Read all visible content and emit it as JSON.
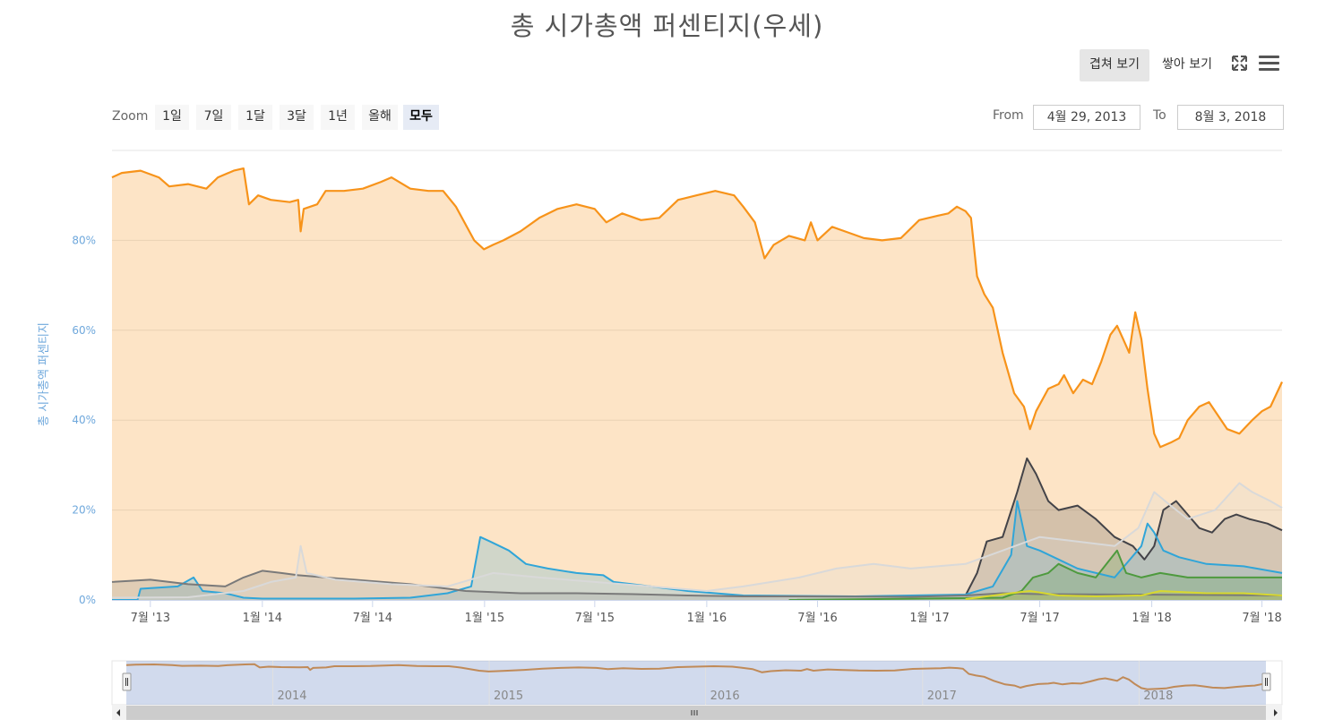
{
  "title": "총 시가총액 퍼센티지(우세)",
  "toolbar": {
    "overlap_label": "겹쳐 보기",
    "stack_label": "쌓아 보기",
    "fullscreen_icon": "fullscreen-icon",
    "menu_icon": "hamburger-menu-icon"
  },
  "range_selector": {
    "zoom_label": "Zoom",
    "buttons": [
      "1일",
      "7일",
      "1달",
      "3달",
      "1년",
      "올해",
      "모두"
    ],
    "active": "모두",
    "from_label": "From",
    "from_value": "4월 29, 2013",
    "to_label": "To",
    "to_value": "8월 3, 2018"
  },
  "colors": {
    "bitcoin": "#f7931a",
    "bitcoin_fill": "#fde3c5",
    "dark": "#434348",
    "blue": "#30a5d8",
    "grey": "#7a7a7a",
    "light": "#d9d9d9",
    "green": "#4e9a3e",
    "yellow": "#d8d82e",
    "axis_label": "#6fa8dc"
  },
  "chart_data": {
    "type": "area",
    "title": "총 시가총액 퍼센티지(우세)",
    "ylabel": "총 시가총액 퍼센티지",
    "ylim": [
      0,
      100
    ],
    "yticks": [
      "0%",
      "20%",
      "40%",
      "60%",
      "80%"
    ],
    "xlim": [
      "2013-04-29",
      "2018-08-03"
    ],
    "xticks": [
      "7월 '13",
      "1월 '14",
      "7월 '14",
      "1월 '15",
      "7월 '15",
      "1월 '16",
      "7월 '16",
      "1월 '17",
      "7월 '17",
      "1월 '18",
      "7월 '18"
    ],
    "navigator_ticks": [
      "2014",
      "2015",
      "2016",
      "2017",
      "2018"
    ],
    "grid": true,
    "series": [
      {
        "color": "#f7931a",
        "points": [
          [
            "2013-04-29",
            94
          ],
          [
            "2013-05-15",
            95
          ],
          [
            "2013-06-15",
            95.5
          ],
          [
            "2013-07-15",
            94
          ],
          [
            "2013-08-01",
            92
          ],
          [
            "2013-09-01",
            92.5
          ],
          [
            "2013-10-01",
            91.5
          ],
          [
            "2013-10-20",
            94
          ],
          [
            "2013-11-15",
            95.5
          ],
          [
            "2013-12-01",
            96
          ],
          [
            "2013-12-10",
            88
          ],
          [
            "2013-12-25",
            90
          ],
          [
            "2014-01-15",
            89
          ],
          [
            "2014-02-15",
            88.5
          ],
          [
            "2014-03-01",
            89
          ],
          [
            "2014-03-05",
            82
          ],
          [
            "2014-03-10",
            87
          ],
          [
            "2014-04-01",
            88
          ],
          [
            "2014-04-15",
            91
          ],
          [
            "2014-05-15",
            91
          ],
          [
            "2014-06-15",
            91.5
          ],
          [
            "2014-07-15",
            93
          ],
          [
            "2014-08-01",
            94
          ],
          [
            "2014-09-01",
            91.5
          ],
          [
            "2014-10-01",
            91
          ],
          [
            "2014-10-25",
            91
          ],
          [
            "2014-11-15",
            87.5
          ],
          [
            "2014-12-15",
            80
          ],
          [
            "2014-12-31",
            78
          ],
          [
            "2015-01-15",
            79
          ],
          [
            "2015-02-01",
            80
          ],
          [
            "2015-03-01",
            82
          ],
          [
            "2015-04-01",
            85
          ],
          [
            "2015-05-01",
            87
          ],
          [
            "2015-06-01",
            88
          ],
          [
            "2015-07-01",
            87
          ],
          [
            "2015-07-20",
            84
          ],
          [
            "2015-08-15",
            86
          ],
          [
            "2015-09-15",
            84.5
          ],
          [
            "2015-10-15",
            85
          ],
          [
            "2015-11-15",
            89
          ],
          [
            "2015-12-15",
            90
          ],
          [
            "2016-01-15",
            91
          ],
          [
            "2016-02-15",
            90
          ],
          [
            "2016-03-01",
            87.5
          ],
          [
            "2016-03-20",
            84
          ],
          [
            "2016-04-05",
            76
          ],
          [
            "2016-04-20",
            79
          ],
          [
            "2016-05-15",
            81
          ],
          [
            "2016-06-10",
            80
          ],
          [
            "2016-06-20",
            84
          ],
          [
            "2016-07-01",
            80
          ],
          [
            "2016-07-25",
            83
          ],
          [
            "2016-08-15",
            82
          ],
          [
            "2016-09-15",
            80.5
          ],
          [
            "2016-10-15",
            80
          ],
          [
            "2016-11-15",
            80.5
          ],
          [
            "2016-12-15",
            84.5
          ],
          [
            "2017-01-15",
            85.5
          ],
          [
            "2017-02-01",
            86
          ],
          [
            "2017-02-15",
            87.5
          ],
          [
            "2017-03-01",
            86.5
          ],
          [
            "2017-03-10",
            85
          ],
          [
            "2017-03-20",
            72
          ],
          [
            "2017-04-01",
            68
          ],
          [
            "2017-04-15",
            65
          ],
          [
            "2017-05-01",
            55
          ],
          [
            "2017-05-20",
            46
          ],
          [
            "2017-06-05",
            43
          ],
          [
            "2017-06-15",
            38
          ],
          [
            "2017-06-25",
            42
          ],
          [
            "2017-07-15",
            47
          ],
          [
            "2017-08-01",
            48
          ],
          [
            "2017-08-10",
            50
          ],
          [
            "2017-08-25",
            46
          ],
          [
            "2017-09-10",
            49
          ],
          [
            "2017-09-25",
            48
          ],
          [
            "2017-10-10",
            53
          ],
          [
            "2017-10-25",
            59
          ],
          [
            "2017-11-05",
            61
          ],
          [
            "2017-11-15",
            58
          ],
          [
            "2017-11-25",
            55
          ],
          [
            "2017-12-05",
            64
          ],
          [
            "2017-12-15",
            58
          ],
          [
            "2017-12-25",
            47
          ],
          [
            "2018-01-05",
            37
          ],
          [
            "2018-01-15",
            34
          ],
          [
            "2018-02-01",
            35
          ],
          [
            "2018-02-15",
            36
          ],
          [
            "2018-03-01",
            40
          ],
          [
            "2018-03-20",
            43
          ],
          [
            "2018-04-05",
            44
          ],
          [
            "2018-04-20",
            41
          ],
          [
            "2018-05-05",
            38
          ],
          [
            "2018-05-25",
            37
          ],
          [
            "2018-06-15",
            40
          ],
          [
            "2018-07-01",
            42
          ],
          [
            "2018-07-15",
            43
          ],
          [
            "2018-08-03",
            48.5
          ]
        ]
      },
      {
        "color": "#434348",
        "points": [
          [
            "2017-03-01",
            1
          ],
          [
            "2017-03-20",
            6
          ],
          [
            "2017-04-05",
            13
          ],
          [
            "2017-05-01",
            14
          ],
          [
            "2017-05-25",
            24
          ],
          [
            "2017-06-10",
            31.5
          ],
          [
            "2017-06-25",
            28
          ],
          [
            "2017-07-15",
            22
          ],
          [
            "2017-08-01",
            20
          ],
          [
            "2017-09-01",
            21
          ],
          [
            "2017-10-01",
            18
          ],
          [
            "2017-11-01",
            14
          ],
          [
            "2017-12-01",
            12
          ],
          [
            "2017-12-20",
            9
          ],
          [
            "2018-01-05",
            12
          ],
          [
            "2018-01-20",
            20
          ],
          [
            "2018-02-10",
            22
          ],
          [
            "2018-03-01",
            19
          ],
          [
            "2018-03-20",
            16
          ],
          [
            "2018-04-10",
            15
          ],
          [
            "2018-05-01",
            18
          ],
          [
            "2018-05-20",
            19
          ],
          [
            "2018-06-10",
            18
          ],
          [
            "2018-07-10",
            17
          ],
          [
            "2018-08-03",
            15.5
          ]
        ]
      },
      {
        "color": "#30a5d8",
        "points": [
          [
            "2013-04-29",
            0
          ],
          [
            "2013-06-10",
            0
          ],
          [
            "2013-06-15",
            2.5
          ],
          [
            "2013-08-15",
            3
          ],
          [
            "2013-09-10",
            5
          ],
          [
            "2013-09-25",
            2
          ],
          [
            "2013-11-01",
            1.5
          ],
          [
            "2013-12-01",
            0.5
          ],
          [
            "2014-01-01",
            0.3
          ],
          [
            "2014-06-01",
            0.3
          ],
          [
            "2014-09-01",
            0.5
          ],
          [
            "2014-11-01",
            1.5
          ],
          [
            "2014-12-10",
            3
          ],
          [
            "2014-12-25",
            14
          ],
          [
            "2015-01-10",
            13
          ],
          [
            "2015-02-10",
            11
          ],
          [
            "2015-03-10",
            8
          ],
          [
            "2015-04-15",
            7
          ],
          [
            "2015-06-01",
            6
          ],
          [
            "2015-07-15",
            5.5
          ],
          [
            "2015-08-01",
            4
          ],
          [
            "2015-10-01",
            3
          ],
          [
            "2015-12-01",
            2
          ],
          [
            "2016-03-01",
            1
          ],
          [
            "2016-09-01",
            0.8
          ],
          [
            "2017-03-01",
            1.2
          ],
          [
            "2017-04-15",
            3
          ],
          [
            "2017-05-15",
            10
          ],
          [
            "2017-05-25",
            22
          ],
          [
            "2017-06-10",
            12
          ],
          [
            "2017-07-01",
            11
          ],
          [
            "2017-08-01",
            9
          ],
          [
            "2017-09-01",
            7
          ],
          [
            "2017-11-01",
            5
          ],
          [
            "2017-12-15",
            12
          ],
          [
            "2017-12-25",
            17
          ],
          [
            "2018-01-05",
            15
          ],
          [
            "2018-01-20",
            11
          ],
          [
            "2018-02-15",
            9.5
          ],
          [
            "2018-04-01",
            8
          ],
          [
            "2018-06-01",
            7.5
          ],
          [
            "2018-08-03",
            6
          ]
        ]
      },
      {
        "color": "#7a7a7a",
        "points": [
          [
            "2013-04-29",
            4
          ],
          [
            "2013-07-01",
            4.5
          ],
          [
            "2013-09-01",
            3.5
          ],
          [
            "2013-11-01",
            3
          ],
          [
            "2013-12-01",
            5
          ],
          [
            "2014-01-01",
            6.5
          ],
          [
            "2014-02-01",
            6
          ],
          [
            "2014-03-01",
            5.5
          ],
          [
            "2014-06-01",
            4.5
          ],
          [
            "2014-09-01",
            3.5
          ],
          [
            "2014-12-01",
            2
          ],
          [
            "2015-03-01",
            1.5
          ],
          [
            "2015-06-01",
            1.5
          ],
          [
            "2015-09-01",
            1.3
          ],
          [
            "2015-12-01",
            1
          ],
          [
            "2016-03-01",
            0.8
          ],
          [
            "2016-06-01",
            0.8
          ],
          [
            "2016-12-01",
            0.7
          ],
          [
            "2017-03-01",
            1
          ],
          [
            "2017-05-01",
            1.5
          ],
          [
            "2017-07-01",
            1.3
          ],
          [
            "2017-12-01",
            1.2
          ],
          [
            "2018-08-03",
            1
          ]
        ]
      },
      {
        "color": "#d9d9d9",
        "points": [
          [
            "2013-04-29",
            0.5
          ],
          [
            "2013-09-01",
            0.6
          ],
          [
            "2013-12-01",
            2
          ],
          [
            "2014-01-15",
            4
          ],
          [
            "2014-02-25",
            5
          ],
          [
            "2014-03-05",
            12
          ],
          [
            "2014-03-15",
            6
          ],
          [
            "2014-05-01",
            4.5
          ],
          [
            "2014-08-01",
            3.5
          ],
          [
            "2014-11-01",
            3
          ],
          [
            "2015-01-15",
            6
          ],
          [
            "2015-04-01",
            5
          ],
          [
            "2015-07-01",
            4
          ],
          [
            "2015-10-01",
            3
          ],
          [
            "2016-01-01",
            2
          ],
          [
            "2016-03-01",
            3
          ],
          [
            "2016-06-01",
            5
          ],
          [
            "2016-08-01",
            7
          ],
          [
            "2016-10-01",
            8
          ],
          [
            "2016-12-01",
            7
          ],
          [
            "2017-03-01",
            8
          ],
          [
            "2017-05-01",
            11
          ],
          [
            "2017-07-01",
            14
          ],
          [
            "2017-09-01",
            13
          ],
          [
            "2017-11-01",
            12
          ],
          [
            "2017-12-10",
            16
          ],
          [
            "2018-01-05",
            24
          ],
          [
            "2018-02-01",
            21
          ],
          [
            "2018-03-01",
            18
          ],
          [
            "2018-04-15",
            20
          ],
          [
            "2018-05-25",
            26
          ],
          [
            "2018-06-15",
            24
          ],
          [
            "2018-07-15",
            22
          ],
          [
            "2018-08-03",
            20.5
          ]
        ]
      },
      {
        "color": "#4e9a3e",
        "points": [
          [
            "2016-05-15",
            0
          ],
          [
            "2017-05-01",
            0.5
          ],
          [
            "2017-06-01",
            2
          ],
          [
            "2017-06-20",
            5
          ],
          [
            "2017-07-15",
            6
          ],
          [
            "2017-08-01",
            8
          ],
          [
            "2017-09-01",
            6
          ],
          [
            "2017-10-01",
            5
          ],
          [
            "2017-11-05",
            11
          ],
          [
            "2017-11-20",
            6
          ],
          [
            "2017-12-15",
            5
          ],
          [
            "2018-01-15",
            6
          ],
          [
            "2018-03-01",
            5
          ],
          [
            "2018-08-03",
            5
          ]
        ]
      },
      {
        "color": "#d8d82e",
        "points": [
          [
            "2017-03-01",
            0.2
          ],
          [
            "2017-05-15",
            1.5
          ],
          [
            "2017-06-15",
            2
          ],
          [
            "2017-08-01",
            1
          ],
          [
            "2017-10-01",
            0.8
          ],
          [
            "2017-12-15",
            1
          ],
          [
            "2018-01-15",
            2
          ],
          [
            "2018-04-01",
            1.5
          ],
          [
            "2018-06-01",
            1.5
          ],
          [
            "2018-08-03",
            1
          ]
        ]
      }
    ]
  }
}
